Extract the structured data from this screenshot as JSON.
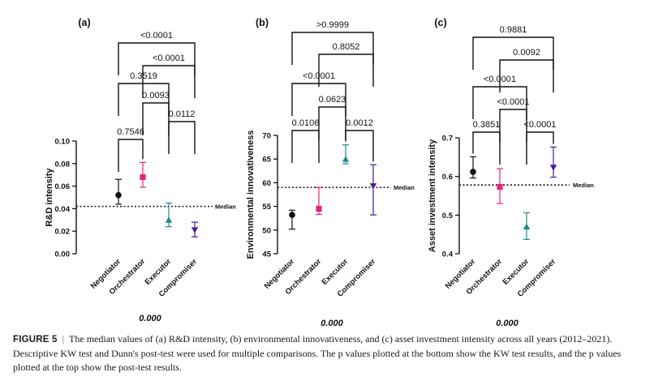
{
  "figure": {
    "panels": [
      "(a)",
      "(b)",
      "(c)"
    ]
  },
  "chart_data": [
    {
      "type": "scatter",
      "panel_label": "(a)",
      "ylabel": "R&D intensity",
      "ylim": [
        0,
        0.1
      ],
      "yticks": [
        "0.00",
        "0.02",
        "0.04",
        "0.06",
        "0.08",
        "0.10"
      ],
      "categories": [
        "Negotiator",
        "Orchestrator",
        "Executor",
        "Compromiser"
      ],
      "median": {
        "value": 0.042,
        "label": "Median"
      },
      "points": [
        {
          "category": "Negotiator",
          "value": 0.052,
          "low": 0.044,
          "high": 0.066,
          "marker": "circle",
          "color": "#111111"
        },
        {
          "category": "Orchestrator",
          "value": 0.068,
          "low": 0.059,
          "high": 0.081,
          "marker": "square",
          "color": "#e8247a"
        },
        {
          "category": "Executor",
          "value": 0.03,
          "low": 0.024,
          "high": 0.045,
          "marker": "triangle-up",
          "color": "#1f8a8a"
        },
        {
          "category": "Compromiser",
          "value": 0.021,
          "low": 0.015,
          "high": 0.028,
          "marker": "triangle-down",
          "color": "#4b1a8c"
        }
      ],
      "comparisons": [
        {
          "from": 0,
          "to": 1,
          "p": "0.7546"
        },
        {
          "from": 2,
          "to": 3,
          "p": "0.0112"
        },
        {
          "from": 1,
          "to": 2,
          "p": "0.0093"
        },
        {
          "from": 0,
          "to": 2,
          "p": "0.3519"
        },
        {
          "from": 1,
          "to": 3,
          "p": "<0.0001"
        },
        {
          "from": 0,
          "to": 3,
          "p": "<0.0001"
        }
      ],
      "kw_p": "0.000"
    },
    {
      "type": "scatter",
      "panel_label": "(b)",
      "ylabel": "Environmental innovativeness",
      "ylim": [
        45,
        70
      ],
      "yticks": [
        "45",
        "50",
        "55",
        "60",
        "65",
        "70"
      ],
      "categories": [
        "Negotiator",
        "Orchestrator",
        "Executor",
        "Compromiser"
      ],
      "median": {
        "value": 59,
        "label": "Median"
      },
      "points": [
        {
          "category": "Negotiator",
          "value": 53.2,
          "low": 50.2,
          "high": 54.2,
          "marker": "circle",
          "color": "#111111"
        },
        {
          "category": "Orchestrator",
          "value": 54.5,
          "low": 53.3,
          "high": 59.0,
          "marker": "square",
          "color": "#e8247a"
        },
        {
          "category": "Executor",
          "value": 65.0,
          "low": 64.0,
          "high": 68.0,
          "marker": "triangle-up",
          "color": "#1f8a8a"
        },
        {
          "category": "Compromiser",
          "value": 59.3,
          "low": 53.2,
          "high": 63.8,
          "marker": "triangle-down",
          "color": "#4b1a8c"
        }
      ],
      "comparisons": [
        {
          "from": 0,
          "to": 1,
          "p": "0.0106"
        },
        {
          "from": 2,
          "to": 3,
          "p": "0.0012"
        },
        {
          "from": 1,
          "to": 2,
          "p": "0.0623"
        },
        {
          "from": 0,
          "to": 2,
          "p": "<0.0001"
        },
        {
          "from": 1,
          "to": 3,
          "p": "0.8052"
        },
        {
          "from": 0,
          "to": 3,
          "p": ">0.9999"
        }
      ],
      "kw_p": "0.000"
    },
    {
      "type": "scatter",
      "panel_label": "(c)",
      "ylabel": "Asset investment intensity",
      "ylim": [
        0.4,
        0.7
      ],
      "yticks": [
        "0.4",
        "0.5",
        "0.6",
        "0.7"
      ],
      "categories": [
        "Negotiator",
        "Orchestrator",
        "Executor",
        "Compromiser"
      ],
      "median": {
        "value": 0.578,
        "label": "Median"
      },
      "points": [
        {
          "category": "Negotiator",
          "value": 0.612,
          "low": 0.596,
          "high": 0.651,
          "marker": "circle",
          "color": "#111111"
        },
        {
          "category": "Orchestrator",
          "value": 0.573,
          "low": 0.53,
          "high": 0.62,
          "marker": "square",
          "color": "#e8247a"
        },
        {
          "category": "Executor",
          "value": 0.47,
          "low": 0.437,
          "high": 0.506,
          "marker": "triangle-up",
          "color": "#1f8a8a"
        },
        {
          "category": "Compromiser",
          "value": 0.623,
          "low": 0.598,
          "high": 0.676,
          "marker": "triangle-down",
          "color": "#4b1a8c"
        }
      ],
      "comparisons": [
        {
          "from": 0,
          "to": 1,
          "p": "0.3851"
        },
        {
          "from": 2,
          "to": 3,
          "p": "<0.0001"
        },
        {
          "from": 1,
          "to": 2,
          "p": "<0.0001"
        },
        {
          "from": 0,
          "to": 2,
          "p": "<0.0001"
        },
        {
          "from": 1,
          "to": 3,
          "p": "0.0092"
        },
        {
          "from": 0,
          "to": 3,
          "p": "0.9881"
        }
      ],
      "kw_p": "0.000"
    }
  ],
  "caption": {
    "label": "FIGURE 5",
    "separator": "|",
    "text": "The median values of (a) R&D intensity, (b) environmental innovativeness, and (c) asset investment intensity across all years (2012–2021). Descriptive KW test and Dunn's post-test were used for multiple comparisons. The p values plotted at the bottom show the KW test results, and the p values plotted at the top show the post-test results."
  }
}
